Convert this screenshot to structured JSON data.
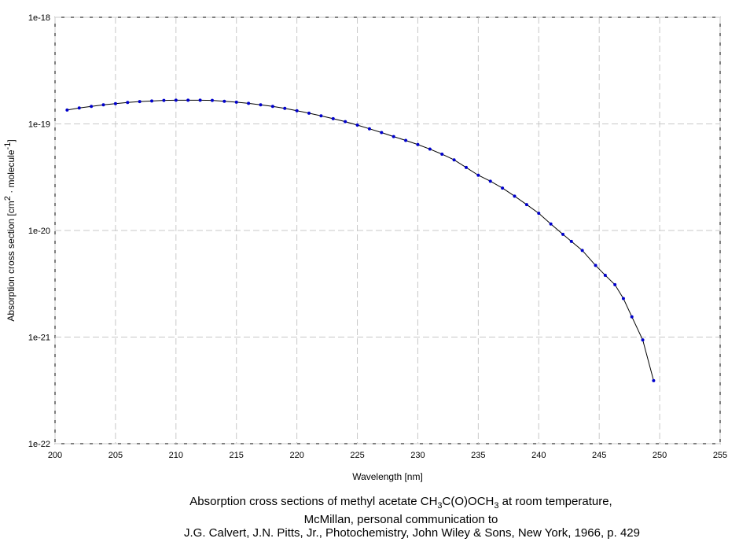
{
  "chart_data": {
    "type": "line",
    "title": [
      [
        "Absorption cross sections of methyl acetate CH",
        "3",
        "C(O)OCH",
        "3",
        " at room temperature,"
      ],
      "McMillan, personal communication to",
      "J.G. Calvert, J.N. Pitts, Jr., Photochemistry, John Wiley & Sons, New York, 1966, p. 429"
    ],
    "xlabel": "Wavelength [nm]",
    "ylabel": [
      "Absorption cross section [cm",
      "2",
      " · molecule",
      "-1",
      "]"
    ],
    "x": [
      201,
      202,
      203,
      204,
      205,
      206,
      207,
      208,
      209,
      210,
      211,
      212,
      213,
      214,
      215,
      216,
      217,
      218,
      219,
      220,
      221,
      222,
      223,
      224,
      225,
      226,
      227,
      228,
      229,
      230,
      231,
      232,
      233,
      234,
      235,
      236,
      237,
      238,
      239,
      240,
      241,
      242,
      242.7,
      243.6,
      244.7,
      245.5,
      246.3,
      247.0,
      247.7,
      248.6,
      249.5
    ],
    "series": [
      {
        "color": "#0000cc",
        "line_color": "#000000",
        "values": [
          1.35e-19,
          1.41e-19,
          1.46e-19,
          1.51e-19,
          1.55e-19,
          1.59e-19,
          1.62e-19,
          1.64e-19,
          1.66e-19,
          1.67e-19,
          1.67e-19,
          1.67e-19,
          1.66e-19,
          1.63e-19,
          1.6e-19,
          1.56e-19,
          1.51e-19,
          1.46e-19,
          1.4e-19,
          1.33e-19,
          1.26e-19,
          1.19e-19,
          1.12e-19,
          1.05e-19,
          9.75e-20,
          9e-20,
          8.3e-20,
          7.6e-20,
          7e-20,
          6.4e-20,
          5.8e-20,
          5.2e-20,
          4.6e-20,
          3.9e-20,
          3.3e-20,
          2.9e-20,
          2.5e-20,
          2.1e-20,
          1.75e-20,
          1.45e-20,
          1.15e-20,
          9.2e-21,
          7.9e-21,
          6.5e-21,
          4.7e-21,
          3.8e-21,
          3.1e-21,
          2.3e-21,
          1.55e-21,
          9.4e-22,
          3.9e-22
        ]
      }
    ],
    "xlim": [
      200,
      255
    ],
    "xticks": [
      200,
      205,
      210,
      215,
      220,
      225,
      230,
      235,
      240,
      245,
      250,
      255
    ],
    "ylim": [
      1e-22,
      1e-18
    ],
    "yticks": [
      1e-22,
      1e-21,
      1e-20,
      1e-19,
      1e-18
    ],
    "ylog": true,
    "grid": true
  }
}
